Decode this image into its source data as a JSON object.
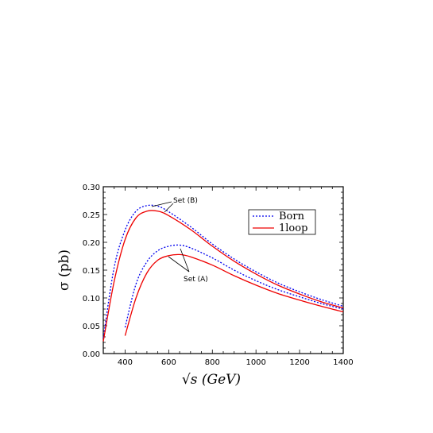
{
  "chart_data": {
    "type": "line",
    "title": "",
    "xlabel": "√s (GeV)",
    "ylabel": "σ (pb)",
    "xlim": [
      300,
      1400
    ],
    "ylim": [
      0,
      0.3
    ],
    "xticks": [
      400,
      600,
      800,
      1000,
      1200,
      1400
    ],
    "yticks": [
      0.0,
      0.05,
      0.1,
      0.15,
      0.2,
      0.25,
      0.3
    ],
    "ytick_labels": [
      "0.00",
      "0.05",
      "0.10",
      "0.15",
      "0.20",
      "0.25",
      "0.30"
    ],
    "legend": {
      "position": "top-right",
      "entries": [
        "Born",
        "1loop"
      ]
    },
    "annotations": [
      "Set (B)",
      "Set (A)"
    ],
    "series": [
      {
        "name": "Born",
        "set": "Set (B)",
        "color": "#0000ee",
        "dash": true,
        "x": [
          300,
          350,
          400,
          450,
          500,
          550,
          600,
          700,
          800,
          900,
          1000,
          1100,
          1200,
          1300,
          1400
        ],
        "y": [
          0.028,
          0.155,
          0.222,
          0.256,
          0.266,
          0.265,
          0.255,
          0.228,
          0.197,
          0.17,
          0.147,
          0.127,
          0.111,
          0.097,
          0.085
        ]
      },
      {
        "name": "1loop",
        "set": "Set (B)",
        "color": "#ee0000",
        "dash": false,
        "x": [
          300,
          350,
          400,
          450,
          500,
          550,
          600,
          700,
          800,
          900,
          1000,
          1100,
          1200,
          1300,
          1400
        ],
        "y": [
          0.022,
          0.13,
          0.205,
          0.244,
          0.256,
          0.256,
          0.248,
          0.223,
          0.193,
          0.166,
          0.143,
          0.123,
          0.107,
          0.093,
          0.082
        ]
      },
      {
        "name": "Born",
        "set": "Set (A)",
        "color": "#0000ee",
        "dash": true,
        "x": [
          400,
          450,
          500,
          550,
          600,
          650,
          700,
          800,
          900,
          1000,
          1100,
          1200,
          1300,
          1400
        ],
        "y": [
          0.047,
          0.125,
          0.165,
          0.185,
          0.193,
          0.195,
          0.19,
          0.172,
          0.15,
          0.131,
          0.115,
          0.102,
          0.09,
          0.08
        ]
      },
      {
        "name": "1loop",
        "set": "Set (A)",
        "color": "#ee0000",
        "dash": false,
        "x": [
          400,
          450,
          500,
          550,
          600,
          650,
          700,
          800,
          900,
          1000,
          1100,
          1200,
          1300,
          1400
        ],
        "y": [
          0.032,
          0.1,
          0.145,
          0.168,
          0.176,
          0.178,
          0.174,
          0.159,
          0.14,
          0.123,
          0.108,
          0.096,
          0.085,
          0.075
        ]
      }
    ]
  }
}
